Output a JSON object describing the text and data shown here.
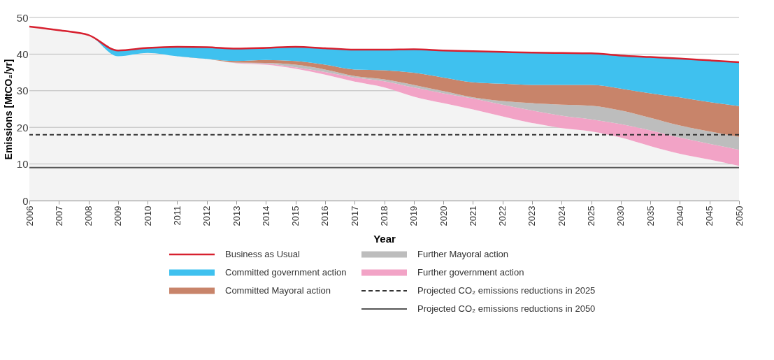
{
  "chart_data": {
    "type": "area",
    "stacked": true,
    "xlabel": "Year",
    "ylabel": "Emissions [MtCO₂/yr]",
    "categories": [
      "2006",
      "2007",
      "2008",
      "2009",
      "2010",
      "2011",
      "2012",
      "2013",
      "2014",
      "2015",
      "2016",
      "2017",
      "2018",
      "2019",
      "2020",
      "2021",
      "2022",
      "2023",
      "2024",
      "2025",
      "2030",
      "2035",
      "2040",
      "2045",
      "2050"
    ],
    "ylim": [
      0,
      50
    ],
    "yticks": [
      0,
      10,
      20,
      30,
      40,
      50
    ],
    "grid": "y",
    "legend": "bottom",
    "series": [
      {
        "color": "#f3f3f3",
        "values": [
          47.5,
          46.5,
          45.2,
          39.4,
          40.3,
          39.4,
          38.7,
          37.5,
          37.1,
          36.0,
          34.4,
          32.5,
          30.9,
          28.4,
          26.6,
          24.9,
          23.0,
          21.2,
          19.8,
          18.9,
          17.2,
          14.9,
          12.8,
          11.2,
          9.5
        ]
      },
      {
        "name": "Further government action",
        "color": "#f2a3c6",
        "values": [
          0,
          0,
          0,
          0,
          0,
          0,
          0,
          0.1,
          0.3,
          0.4,
          0.7,
          1.1,
          1.7,
          2.5,
          2.7,
          3.0,
          3.2,
          3.4,
          3.4,
          3.3,
          3.7,
          4.3,
          4.4,
          4.3,
          4.4
        ]
      },
      {
        "name": "Further Mayoral action",
        "color": "#bdbdbd",
        "values": [
          0,
          0,
          0,
          0,
          0,
          0,
          0,
          0.1,
          0.2,
          0.7,
          0.7,
          0.4,
          0.5,
          0.7,
          0.6,
          0.3,
          1.0,
          2.0,
          3.0,
          3.7,
          3.7,
          3.4,
          3.3,
          3.4,
          3.5
        ]
      },
      {
        "name": "Committed Mayoral action",
        "color": "#c8846a",
        "values": [
          0,
          0,
          0,
          0,
          0,
          0,
          0,
          0.4,
          0.8,
          1.0,
          1.3,
          1.8,
          2.5,
          3.3,
          3.7,
          4.1,
          4.7,
          5.0,
          5.4,
          5.7,
          6.0,
          6.7,
          7.7,
          8.0,
          8.4
        ]
      },
      {
        "name": "Committed government action",
        "color": "#3fc1ef",
        "values": [
          0,
          0,
          0,
          1.6,
          1.4,
          2.6,
          3.2,
          3.4,
          3.3,
          3.9,
          4.5,
          5.4,
          5.6,
          6.4,
          7.4,
          8.5,
          8.7,
          8.8,
          8.7,
          8.6,
          9.0,
          9.9,
          10.6,
          11.4,
          12.0
        ]
      },
      {
        "name": "Business as Usual",
        "type": "line",
        "color": "#d7202f",
        "values": [
          47.5,
          46.5,
          45.2,
          41.0,
          41.7,
          42.0,
          41.9,
          41.5,
          41.7,
          42.0,
          41.6,
          41.2,
          41.2,
          41.3,
          41.0,
          40.8,
          40.6,
          40.4,
          40.3,
          40.2,
          39.6,
          39.2,
          38.8,
          38.3,
          37.8
        ]
      }
    ],
    "ref_lines": [
      {
        "axis": "y",
        "value": 18,
        "label": "Projected CO₂ emissions reductions in 2025",
        "color": "#333333",
        "line_style": "dashed"
      },
      {
        "axis": "y",
        "value": 9,
        "label": "Projected CO₂ emissions reductions in 2050",
        "color": "#555555",
        "line_style": "solid"
      }
    ]
  }
}
